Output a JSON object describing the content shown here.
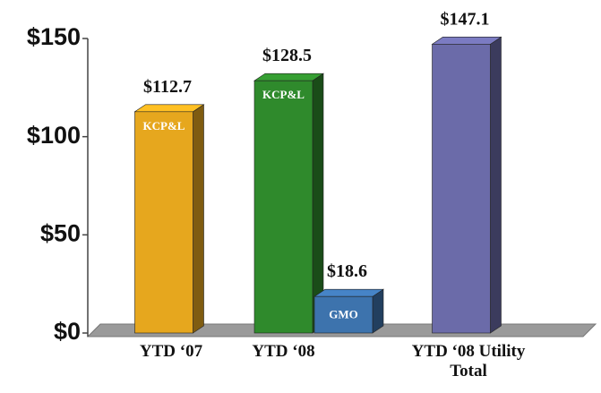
{
  "chart_data": {
    "type": "bar3d",
    "categories": [
      "YTD ‘07",
      "YTD ‘08",
      "YTD ‘08 Utility Total"
    ],
    "series": [
      {
        "name": "KCP&L",
        "color": [
          "#e6a71e",
          "#2f8a2c",
          null
        ],
        "values": [
          112.7,
          128.5,
          null
        ],
        "value_labels": [
          "$112.7",
          "$128.5",
          null
        ]
      },
      {
        "name": "GMO",
        "color": [
          null,
          "#3d73ad",
          null
        ],
        "values": [
          null,
          18.6,
          null
        ],
        "value_labels": [
          null,
          "$18.6",
          null
        ]
      },
      {
        "color": [
          null,
          null,
          "#6b6ba9"
        ],
        "values": [
          null,
          null,
          147.1
        ],
        "value_labels": [
          null,
          null,
          "$147.1"
        ]
      }
    ],
    "ylim": [
      0,
      150
    ],
    "yticks": [
      {
        "value": 0,
        "label": "$0"
      },
      {
        "value": 50,
        "label": "$50"
      },
      {
        "value": 100,
        "label": "$100"
      },
      {
        "value": 150,
        "label": "$150"
      }
    ]
  }
}
